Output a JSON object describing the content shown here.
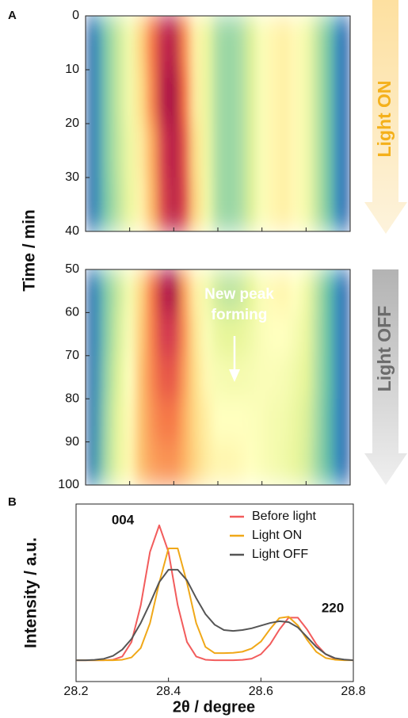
{
  "panel_labels": [
    "A",
    "B"
  ],
  "chart_data": [
    {
      "type": "heatmap",
      "ylabel": "Time / min",
      "side_label": "Light ON",
      "x": [
        28.2,
        28.225,
        28.25,
        28.275,
        28.3,
        28.325,
        28.35,
        28.375,
        28.4,
        28.425,
        28.45,
        28.475,
        28.5,
        28.525,
        28.55,
        28.575,
        28.6,
        28.625,
        28.65,
        28.675,
        28.7,
        28.725,
        28.75,
        28.775,
        28.8
      ],
      "y": [
        5,
        15,
        25,
        35
      ],
      "z": [
        [
          0.05,
          0.12,
          0.25,
          0.35,
          0.45,
          0.62,
          0.78,
          0.93,
          0.95,
          0.76,
          0.55,
          0.42,
          0.3,
          0.27,
          0.3,
          0.38,
          0.48,
          0.53,
          0.55,
          0.52,
          0.45,
          0.33,
          0.22,
          0.1,
          0.05
        ],
        [
          0.05,
          0.12,
          0.25,
          0.35,
          0.45,
          0.6,
          0.76,
          0.95,
          0.98,
          0.8,
          0.56,
          0.42,
          0.3,
          0.27,
          0.3,
          0.38,
          0.48,
          0.53,
          0.55,
          0.52,
          0.45,
          0.33,
          0.22,
          0.1,
          0.05
        ],
        [
          0.05,
          0.12,
          0.25,
          0.34,
          0.43,
          0.56,
          0.7,
          0.9,
          0.96,
          0.85,
          0.6,
          0.43,
          0.3,
          0.27,
          0.3,
          0.38,
          0.48,
          0.53,
          0.55,
          0.52,
          0.45,
          0.33,
          0.22,
          0.1,
          0.05
        ],
        [
          0.05,
          0.12,
          0.24,
          0.33,
          0.42,
          0.54,
          0.68,
          0.88,
          0.95,
          0.87,
          0.62,
          0.44,
          0.3,
          0.27,
          0.3,
          0.38,
          0.48,
          0.53,
          0.55,
          0.52,
          0.45,
          0.33,
          0.22,
          0.1,
          0.05
        ]
      ],
      "zlim": [
        0,
        1
      ],
      "colorscale": [
        "#5e4fa2",
        "#3288bd",
        "#66c2a5",
        "#abdda4",
        "#e6f598",
        "#ffffbf",
        "#fee08b",
        "#fdae61",
        "#f46d43",
        "#d53e4f",
        "#9e0142"
      ],
      "xlim": [
        28.2,
        28.8
      ],
      "xticks": [
        28.3,
        28.4,
        28.5,
        28.6,
        28.7
      ],
      "ylim": [
        40,
        0
      ],
      "yticks": [
        0,
        10,
        20,
        30,
        40
      ]
    },
    {
      "type": "heatmap",
      "side_label": "Light OFF",
      "annotation": [
        "New peak",
        "forming"
      ],
      "x": [
        28.2,
        28.225,
        28.25,
        28.275,
        28.3,
        28.325,
        28.35,
        28.375,
        28.4,
        28.425,
        28.45,
        28.475,
        28.5,
        28.525,
        28.55,
        28.575,
        28.6,
        28.625,
        28.65,
        28.675,
        28.7,
        28.725,
        28.75,
        28.775,
        28.8
      ],
      "y": [
        55,
        65,
        75,
        85,
        95
      ],
      "z": [
        [
          0.05,
          0.12,
          0.25,
          0.35,
          0.46,
          0.62,
          0.78,
          0.95,
          0.97,
          0.72,
          0.55,
          0.45,
          0.36,
          0.33,
          0.35,
          0.4,
          0.48,
          0.52,
          0.53,
          0.5,
          0.44,
          0.32,
          0.2,
          0.1,
          0.05
        ],
        [
          0.05,
          0.12,
          0.26,
          0.37,
          0.48,
          0.64,
          0.77,
          0.9,
          0.9,
          0.74,
          0.58,
          0.48,
          0.42,
          0.4,
          0.41,
          0.44,
          0.48,
          0.5,
          0.5,
          0.47,
          0.42,
          0.31,
          0.2,
          0.1,
          0.05
        ],
        [
          0.05,
          0.13,
          0.28,
          0.39,
          0.5,
          0.66,
          0.76,
          0.84,
          0.84,
          0.72,
          0.6,
          0.52,
          0.47,
          0.46,
          0.46,
          0.47,
          0.48,
          0.48,
          0.47,
          0.44,
          0.4,
          0.3,
          0.2,
          0.1,
          0.05
        ],
        [
          0.05,
          0.14,
          0.3,
          0.41,
          0.52,
          0.66,
          0.74,
          0.78,
          0.78,
          0.7,
          0.61,
          0.55,
          0.5,
          0.5,
          0.5,
          0.49,
          0.48,
          0.46,
          0.45,
          0.42,
          0.38,
          0.29,
          0.19,
          0.1,
          0.05
        ],
        [
          0.05,
          0.15,
          0.31,
          0.42,
          0.53,
          0.66,
          0.72,
          0.74,
          0.74,
          0.69,
          0.62,
          0.56,
          0.53,
          0.53,
          0.52,
          0.5,
          0.48,
          0.46,
          0.44,
          0.41,
          0.37,
          0.28,
          0.19,
          0.1,
          0.05
        ]
      ],
      "zlim": [
        0,
        1
      ],
      "colorscale": [
        "#5e4fa2",
        "#3288bd",
        "#66c2a5",
        "#abdda4",
        "#e6f598",
        "#ffffbf",
        "#fee08b",
        "#fdae61",
        "#f46d43",
        "#d53e4f",
        "#9e0142"
      ],
      "xlim": [
        28.2,
        28.8
      ],
      "xticks": [
        28.3,
        28.4,
        28.5,
        28.6,
        28.7
      ],
      "ylim": [
        100,
        50
      ],
      "yticks": [
        50,
        60,
        70,
        80,
        90,
        100
      ]
    },
    {
      "type": "line",
      "xlabel": "2θ / degree",
      "ylabel": "Intensity / a.u.",
      "annotations": [
        "004",
        "220"
      ],
      "x": [
        28.2,
        28.22,
        28.24,
        28.26,
        28.28,
        28.3,
        28.32,
        28.34,
        28.36,
        28.38,
        28.4,
        28.42,
        28.44,
        28.46,
        28.48,
        28.5,
        28.52,
        28.54,
        28.56,
        28.58,
        28.6,
        28.62,
        28.64,
        28.66,
        28.68,
        28.7,
        28.72,
        28.74,
        28.76,
        28.78,
        28.8
      ],
      "series": [
        {
          "name": "Before light",
          "color": "#f25c5c",
          "values": [
            12,
            12,
            12,
            12,
            12.3,
            14.1,
            22.3,
            43,
            73,
            88,
            73,
            43,
            22.3,
            14.1,
            12.3,
            12,
            12,
            12,
            12.2,
            12.9,
            15.4,
            21,
            29.3,
            36,
            36,
            29.3,
            21,
            15.4,
            12.9,
            12.2,
            12
          ]
        },
        {
          "name": "Light ON",
          "color": "#f0a818",
          "values": [
            12,
            12,
            12,
            12,
            12,
            12.3,
            13.6,
            18.9,
            32.9,
            55.7,
            75,
            75,
            55.7,
            32.9,
            19.5,
            16,
            16,
            16.2,
            16.8,
            18.6,
            22.5,
            29.6,
            35.8,
            36.5,
            31.6,
            23.5,
            16.7,
            13.3,
            12.3,
            12,
            12
          ]
        },
        {
          "name": "Light OFF",
          "color": "#555555",
          "values": [
            12,
            12,
            12.2,
            12.8,
            14.5,
            18,
            24,
            33,
            44,
            56,
            63,
            63,
            57,
            47,
            38,
            32,
            29,
            28.5,
            29,
            30,
            31.5,
            33,
            34,
            33.5,
            30.5,
            25,
            19.5,
            15.5,
            13.2,
            12.4,
            12
          ]
        }
      ],
      "xlim": [
        28.2,
        28.8
      ],
      "xticks": [
        28.2,
        28.4,
        28.6,
        28.8
      ],
      "ylim": [
        0,
        100
      ],
      "legend": "upper right"
    }
  ]
}
